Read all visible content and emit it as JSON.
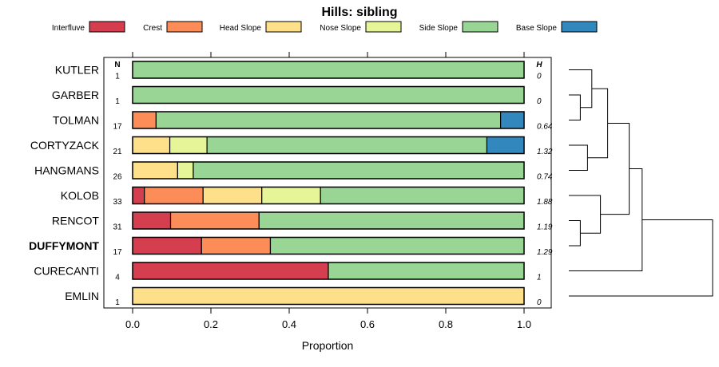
{
  "chart_data": {
    "type": "bar",
    "orientation": "horizontal",
    "stacked": true,
    "title": "Hills: sibling",
    "xlabel": "Proportion",
    "ylabel": "",
    "xlim": [
      0,
      1
    ],
    "xticks": [
      "0.0",
      "0.2",
      "0.4",
      "0.6",
      "0.8",
      "1.0"
    ],
    "legend_position": "top",
    "n_header": "N",
    "h_header": "H",
    "segments": [
      {
        "name": "Interfluve",
        "color": "#d53e4f"
      },
      {
        "name": "Crest",
        "color": "#fc8d59"
      },
      {
        "name": "Head Slope",
        "color": "#fee08b"
      },
      {
        "name": "Nose Slope",
        "color": "#e6f598"
      },
      {
        "name": "Side Slope",
        "color": "#99d594"
      },
      {
        "name": "Base Slope",
        "color": "#3288bd"
      }
    ],
    "rows": [
      {
        "label": "KUTLER",
        "n": "1",
        "h": "0",
        "bold": false,
        "values": [
          0,
          0,
          0,
          0,
          1.0,
          0
        ]
      },
      {
        "label": "GARBER",
        "n": "1",
        "h": "0",
        "bold": false,
        "values": [
          0,
          0,
          0,
          0,
          1.0,
          0
        ]
      },
      {
        "label": "TOLMAN",
        "n": "17",
        "h": "0.64",
        "bold": false,
        "values": [
          0,
          0.06,
          0,
          0,
          0.88,
          0.06
        ]
      },
      {
        "label": "CORTYZACK",
        "n": "21",
        "h": "1.32",
        "bold": false,
        "values": [
          0,
          0,
          0.095,
          0.095,
          0.715,
          0.095
        ]
      },
      {
        "label": "HANGMANS",
        "n": "26",
        "h": "0.74",
        "bold": false,
        "values": [
          0,
          0,
          0.115,
          0.04,
          0.845,
          0
        ]
      },
      {
        "label": "KOLOB",
        "n": "33",
        "h": "1.88",
        "bold": false,
        "values": [
          0.03,
          0.15,
          0.15,
          0.15,
          0.52,
          0
        ]
      },
      {
        "label": "RENCOT",
        "n": "31",
        "h": "1.19",
        "bold": false,
        "values": [
          0.097,
          0.226,
          0,
          0,
          0.677,
          0
        ]
      },
      {
        "label": "DUFFYMONT",
        "n": "17",
        "h": "1.29",
        "bold": true,
        "values": [
          0.176,
          0.176,
          0,
          0,
          0.648,
          0
        ]
      },
      {
        "label": "CURECANTI",
        "n": "4",
        "h": "1",
        "bold": false,
        "values": [
          0.5,
          0,
          0,
          0,
          0.5,
          0
        ]
      },
      {
        "label": "EMLIN",
        "n": "1",
        "h": "0",
        "bold": false,
        "values": [
          0,
          0,
          1.0,
          0,
          0,
          0
        ]
      }
    ],
    "dendrogram": {
      "leaves": [
        "KUTLER",
        "GARBER",
        "TOLMAN",
        "CORTYZACK",
        "HANGMANS",
        "KOLOB",
        "RENCOT",
        "DUFFYMONT",
        "CURECANTI",
        "EMLIN"
      ],
      "merges": [
        {
          "a": "GARBER",
          "b": "TOLMAN",
          "height": 0.08
        },
        {
          "a": "RENCOT",
          "b": "DUFFYMONT",
          "height": 0.08
        },
        {
          "a": "KUTLER",
          "b": "m0",
          "height": 0.16
        },
        {
          "a": "CORTYZACK",
          "b": "HANGMANS",
          "height": 0.13
        },
        {
          "a": "KOLOB",
          "b": "m1",
          "height": 0.22
        },
        {
          "a": "m2",
          "b": "m3",
          "height": 0.27
        },
        {
          "a": "m5",
          "b": "m4",
          "height": 0.42
        },
        {
          "a": "m6",
          "b": "CURECANTI",
          "height": 0.51
        },
        {
          "a": "m7",
          "b": "EMLIN",
          "height": 1.0
        }
      ]
    }
  }
}
